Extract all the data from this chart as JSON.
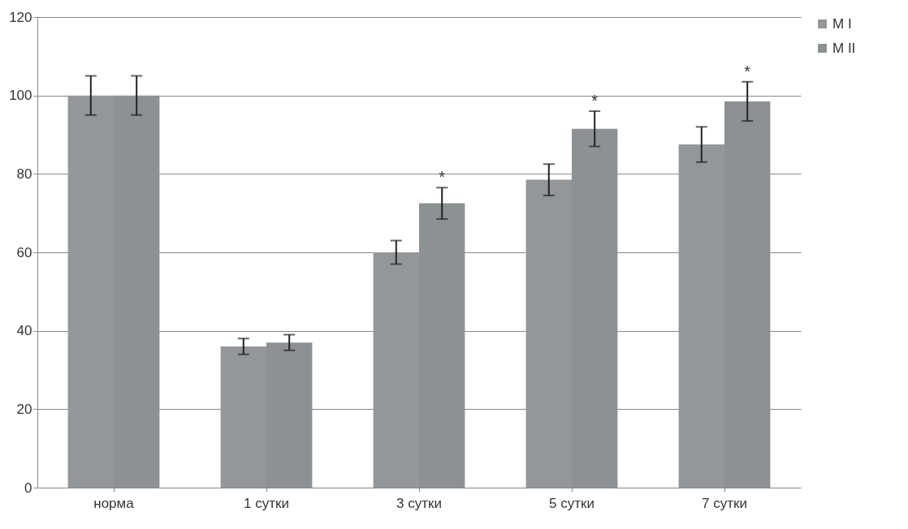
{
  "chart_data": {
    "type": "bar",
    "categories": [
      "норма",
      "1 сутки",
      "3 сутки",
      "5 сутки",
      "7 сутки"
    ],
    "series": [
      {
        "name": "M I",
        "color": "#939799",
        "values": [
          100,
          36,
          60,
          78.5,
          87.5
        ],
        "errors": [
          5,
          2,
          3,
          4,
          4.5
        ]
      },
      {
        "name": "M II",
        "color": "#8c9294",
        "values": [
          100,
          37,
          72.5,
          91.5,
          98.5
        ],
        "errors": [
          5,
          2,
          4,
          4.5,
          5
        ]
      }
    ],
    "ylim": [
      0,
      120
    ],
    "yticks": [
      0,
      20,
      40,
      60,
      80,
      100,
      120
    ],
    "grid": "y",
    "legend": "right",
    "annotations": [
      {
        "text": "*",
        "x": "3 сутки",
        "y": 72.5
      },
      {
        "text": "*",
        "x": "5 сутки",
        "y": 91.5
      },
      {
        "text": "*",
        "x": "7 сутки",
        "y": 98.5
      }
    ]
  }
}
